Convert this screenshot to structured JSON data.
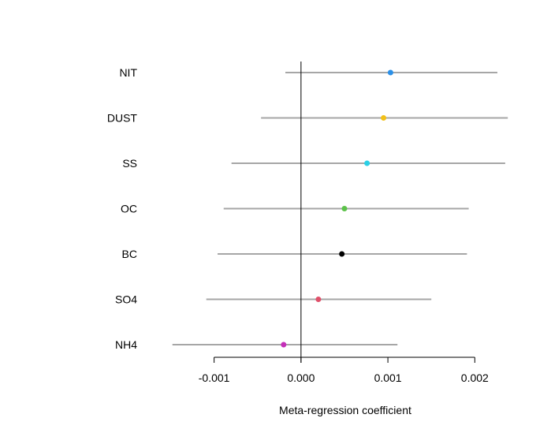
{
  "chart_data": {
    "type": "forest",
    "title": "",
    "xlabel": "Meta-regression coefficient",
    "ylabel": "",
    "xlim": [
      -0.00155,
      0.00236
    ],
    "xticks": [
      -0.001,
      0.0,
      0.001,
      0.002
    ],
    "xtick_labels": [
      "-0.001",
      "0.000",
      "0.001",
      "0.002"
    ],
    "reference_line": 0,
    "grid": false,
    "ci_color": "#a6a6a6",
    "rows": [
      {
        "label": "NIT",
        "estimate": 0.00103,
        "lower": -0.00018,
        "upper": 0.00226,
        "color": "#2b90e8"
      },
      {
        "label": "DUST",
        "estimate": 0.00095,
        "lower": -0.00046,
        "upper": 0.00238,
        "color": "#f2c019"
      },
      {
        "label": "SS",
        "estimate": 0.00076,
        "lower": -0.0008,
        "upper": 0.00235,
        "color": "#2ad0e6"
      },
      {
        "label": "OC",
        "estimate": 0.0005,
        "lower": -0.00089,
        "upper": 0.00193,
        "color": "#5cc24a"
      },
      {
        "label": "BC",
        "estimate": 0.00047,
        "lower": -0.00096,
        "upper": 0.00191,
        "color": "#000000"
      },
      {
        "label": "SO4",
        "estimate": 0.0002,
        "lower": -0.00109,
        "upper": 0.0015,
        "color": "#e0506a"
      },
      {
        "label": "NH4",
        "estimate": -0.0002,
        "lower": -0.00148,
        "upper": 0.00111,
        "color": "#c42fb8"
      }
    ]
  }
}
